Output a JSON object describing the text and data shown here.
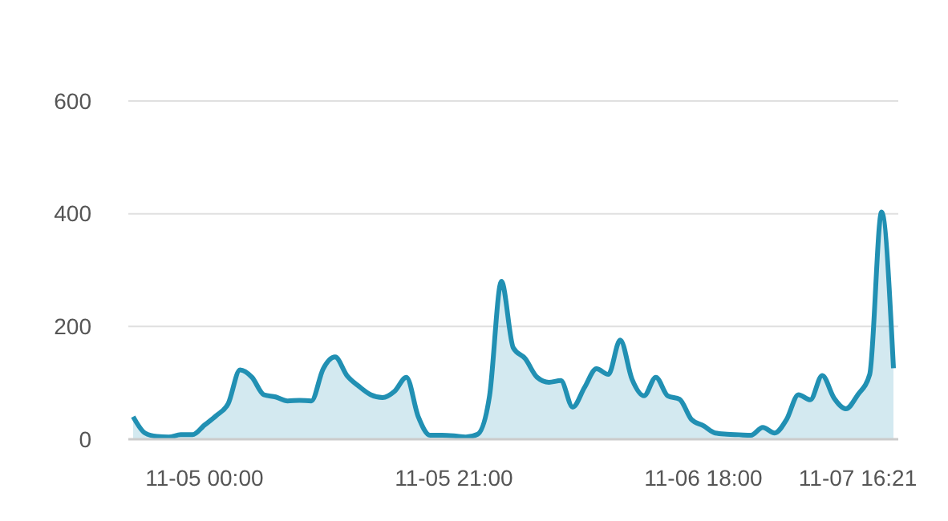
{
  "chart_data": {
    "type": "area",
    "categories": [
      null,
      null,
      null,
      null,
      null,
      null,
      "11-05 00:00",
      null,
      null,
      null,
      null,
      null,
      null,
      null,
      null,
      null,
      null,
      null,
      null,
      null,
      null,
      null,
      null,
      null,
      null,
      null,
      null,
      "11-05 21:00",
      null,
      null,
      null,
      null,
      null,
      null,
      null,
      null,
      null,
      null,
      null,
      null,
      null,
      null,
      null,
      null,
      null,
      null,
      null,
      null,
      "11-06 18:00",
      null,
      null,
      null,
      null,
      null,
      null,
      null,
      null,
      null,
      null,
      null,
      null,
      "11-07 16:21",
      null,
      null,
      null
    ],
    "series": [
      {
        "color": "#2190b3",
        "values": [
          40,
          11,
          5,
          4,
          8,
          8,
          25,
          42,
          63,
          123,
          110,
          79,
          75,
          68,
          69,
          68,
          125,
          146,
          113,
          94,
          79,
          74,
          85,
          110,
          40,
          7,
          7,
          6,
          4,
          9,
          77,
          280,
          162,
          143,
          110,
          101,
          104,
          57,
          92,
          125,
          115,
          176,
          106,
          77,
          110,
          77,
          71,
          35,
          24,
          11,
          9,
          8,
          7,
          21,
          11,
          35,
          79,
          70,
          113,
          73,
          54,
          79,
          115,
          403,
          126
        ]
      }
    ],
    "ylim": [
      0,
      600
    ],
    "yticks": [
      0,
      200,
      400,
      600
    ],
    "grid": "y",
    "marker": "none"
  }
}
